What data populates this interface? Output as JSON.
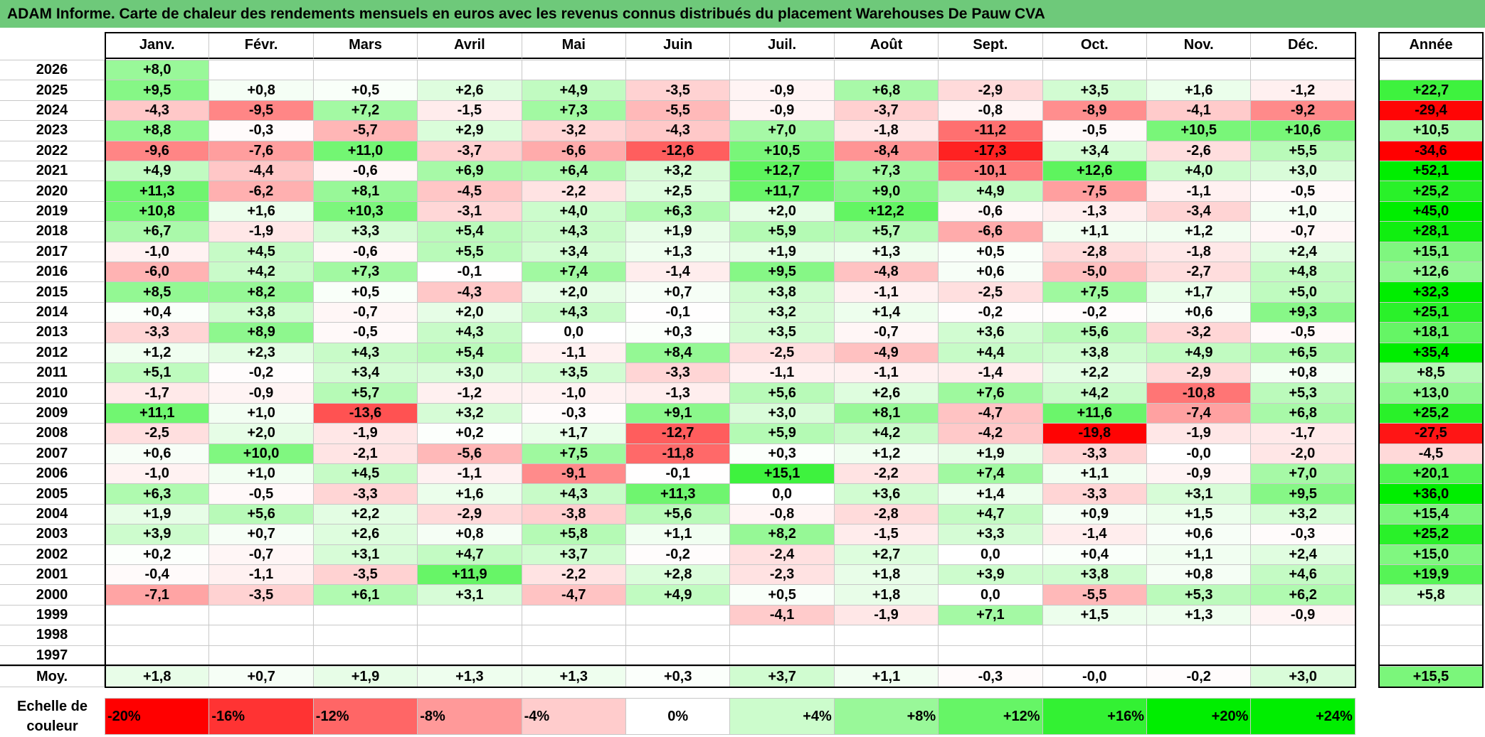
{
  "title": "ADAM Informe. Carte de chaleur des rendements mensuels en euros avec les revenus connus distribués du placement Warehouses De Pauw CVA",
  "chart_data": {
    "type": "heatmap",
    "months": [
      "Janv.",
      "Févr.",
      "Mars",
      "Avril",
      "Mai",
      "Juin",
      "Juil.",
      "Août",
      "Sept.",
      "Oct.",
      "Nov.",
      "Déc."
    ],
    "annual_header": "Année",
    "rows": [
      {
        "year": "2026",
        "months": [
          "+8,0",
          "",
          "",
          "",
          "",
          "",
          "",
          "",
          "",
          "",
          "",
          ""
        ],
        "annual": ""
      },
      {
        "year": "2025",
        "months": [
          "+9,5",
          "+0,8",
          "+0,5",
          "+2,6",
          "+4,9",
          "-3,5",
          "-0,9",
          "+6,8",
          "-2,9",
          "+3,5",
          "+1,6",
          "-1,2"
        ],
        "annual": "+22,7"
      },
      {
        "year": "2024",
        "months": [
          "-4,3",
          "-9,5",
          "+7,2",
          "-1,5",
          "+7,3",
          "-5,5",
          "-0,9",
          "-3,7",
          "-0,8",
          "-8,9",
          "-4,1",
          "-9,2"
        ],
        "annual": "-29,4"
      },
      {
        "year": "2023",
        "months": [
          "+8,8",
          "-0,3",
          "-5,7",
          "+2,9",
          "-3,2",
          "-4,3",
          "+7,0",
          "-1,8",
          "-11,2",
          "-0,5",
          "+10,5",
          "+10,6"
        ],
        "annual": "+10,5"
      },
      {
        "year": "2022",
        "months": [
          "-9,6",
          "-7,6",
          "+11,0",
          "-3,7",
          "-6,6",
          "-12,6",
          "+10,5",
          "-8,4",
          "-17,3",
          "+3,4",
          "-2,6",
          "+5,5"
        ],
        "annual": "-34,6"
      },
      {
        "year": "2021",
        "months": [
          "+4,9",
          "-4,4",
          "-0,6",
          "+6,9",
          "+6,4",
          "+3,2",
          "+12,7",
          "+7,3",
          "-10,1",
          "+12,6",
          "+4,0",
          "+3,0"
        ],
        "annual": "+52,1"
      },
      {
        "year": "2020",
        "months": [
          "+11,3",
          "-6,2",
          "+8,1",
          "-4,5",
          "-2,2",
          "+2,5",
          "+11,7",
          "+9,0",
          "+4,9",
          "-7,5",
          "-1,1",
          "-0,5"
        ],
        "annual": "+25,2"
      },
      {
        "year": "2019",
        "months": [
          "+10,8",
          "+1,6",
          "+10,3",
          "-3,1",
          "+4,0",
          "+6,3",
          "+2,0",
          "+12,2",
          "-0,6",
          "-1,3",
          "-3,4",
          "+1,0"
        ],
        "annual": "+45,0"
      },
      {
        "year": "2018",
        "months": [
          "+6,7",
          "-1,9",
          "+3,3",
          "+5,4",
          "+4,3",
          "+1,9",
          "+5,9",
          "+5,7",
          "-6,6",
          "+1,1",
          "+1,2",
          "-0,7"
        ],
        "annual": "+28,1"
      },
      {
        "year": "2017",
        "months": [
          "-1,0",
          "+4,5",
          "-0,6",
          "+5,5",
          "+3,4",
          "+1,3",
          "+1,9",
          "+1,3",
          "+0,5",
          "-2,8",
          "-1,8",
          "+2,4"
        ],
        "annual": "+15,1"
      },
      {
        "year": "2016",
        "months": [
          "-6,0",
          "+4,2",
          "+7,3",
          "-0,1",
          "+7,4",
          "-1,4",
          "+9,5",
          "-4,8",
          "+0,6",
          "-5,0",
          "-2,7",
          "+4,8"
        ],
        "annual": "+12,6"
      },
      {
        "year": "2015",
        "months": [
          "+8,5",
          "+8,2",
          "+0,5",
          "-4,3",
          "+2,0",
          "+0,7",
          "+3,8",
          "-1,1",
          "-2,5",
          "+7,5",
          "+1,7",
          "+5,0"
        ],
        "annual": "+32,3"
      },
      {
        "year": "2014",
        "months": [
          "+0,4",
          "+3,8",
          "-0,7",
          "+2,0",
          "+4,3",
          "-0,1",
          "+3,2",
          "+1,4",
          "-0,2",
          "-0,2",
          "+0,6",
          "+9,3"
        ],
        "annual": "+25,1"
      },
      {
        "year": "2013",
        "months": [
          "-3,3",
          "+8,9",
          "-0,5",
          "+4,3",
          "0,0",
          "+0,3",
          "+3,5",
          "-0,7",
          "+3,6",
          "+5,6",
          "-3,2",
          "-0,5"
        ],
        "annual": "+18,1"
      },
      {
        "year": "2012",
        "months": [
          "+1,2",
          "+2,3",
          "+4,3",
          "+5,4",
          "-1,1",
          "+8,4",
          "-2,5",
          "-4,9",
          "+4,4",
          "+3,8",
          "+4,9",
          "+6,5"
        ],
        "annual": "+35,4"
      },
      {
        "year": "2011",
        "months": [
          "+5,1",
          "-0,2",
          "+3,4",
          "+3,0",
          "+3,5",
          "-3,3",
          "-1,1",
          "-1,1",
          "-1,4",
          "+2,2",
          "-2,9",
          "+0,8"
        ],
        "annual": "+8,5"
      },
      {
        "year": "2010",
        "months": [
          "-1,7",
          "-0,9",
          "+5,7",
          "-1,2",
          "-1,0",
          "-1,3",
          "+5,6",
          "+2,6",
          "+7,6",
          "+4,2",
          "-10,8",
          "+5,3"
        ],
        "annual": "+13,0"
      },
      {
        "year": "2009",
        "months": [
          "+11,1",
          "+1,0",
          "-13,6",
          "+3,2",
          "-0,3",
          "+9,1",
          "+3,0",
          "+8,1",
          "-4,7",
          "+11,6",
          "-7,4",
          "+6,8"
        ],
        "annual": "+25,2"
      },
      {
        "year": "2008",
        "months": [
          "-2,5",
          "+2,0",
          "-1,9",
          "+0,2",
          "+1,7",
          "-12,7",
          "+5,9",
          "+4,2",
          "-4,2",
          "-19,8",
          "-1,9",
          "-1,7"
        ],
        "annual": "-27,5"
      },
      {
        "year": "2007",
        "months": [
          "+0,6",
          "+10,0",
          "-2,1",
          "-5,6",
          "+7,5",
          "-11,8",
          "+0,3",
          "+1,2",
          "+1,9",
          "-3,3",
          "-0,0",
          "-2,0"
        ],
        "annual": "-4,5"
      },
      {
        "year": "2006",
        "months": [
          "-1,0",
          "+1,0",
          "+4,5",
          "-1,1",
          "-9,1",
          "-0,1",
          "+15,1",
          "-2,2",
          "+7,4",
          "+1,1",
          "-0,9",
          "+7,0"
        ],
        "annual": "+20,1"
      },
      {
        "year": "2005",
        "months": [
          "+6,3",
          "-0,5",
          "-3,3",
          "+1,6",
          "+4,3",
          "+11,3",
          "0,0",
          "+3,6",
          "+1,4",
          "-3,3",
          "+3,1",
          "+9,5"
        ],
        "annual": "+36,0"
      },
      {
        "year": "2004",
        "months": [
          "+1,9",
          "+5,6",
          "+2,2",
          "-2,9",
          "-3,8",
          "+5,6",
          "-0,8",
          "-2,8",
          "+4,7",
          "+0,9",
          "+1,5",
          "+3,2"
        ],
        "annual": "+15,4"
      },
      {
        "year": "2003",
        "months": [
          "+3,9",
          "+0,7",
          "+2,6",
          "+0,8",
          "+5,8",
          "+1,1",
          "+8,2",
          "-1,5",
          "+3,3",
          "-1,4",
          "+0,6",
          "-0,3"
        ],
        "annual": "+25,2"
      },
      {
        "year": "2002",
        "months": [
          "+0,2",
          "-0,7",
          "+3,1",
          "+4,7",
          "+3,7",
          "-0,2",
          "-2,4",
          "+2,7",
          "0,0",
          "+0,4",
          "+1,1",
          "+2,4"
        ],
        "annual": "+15,0"
      },
      {
        "year": "2001",
        "months": [
          "-0,4",
          "-1,1",
          "-3,5",
          "+11,9",
          "-2,2",
          "+2,8",
          "-2,3",
          "+1,8",
          "+3,9",
          "+3,8",
          "+0,8",
          "+4,6"
        ],
        "annual": "+19,9"
      },
      {
        "year": "2000",
        "months": [
          "-7,1",
          "-3,5",
          "+6,1",
          "+3,1",
          "-4,7",
          "+4,9",
          "+0,5",
          "+1,8",
          "0,0",
          "-5,5",
          "+5,3",
          "+6,2"
        ],
        "annual": "+5,8"
      },
      {
        "year": "1999",
        "months": [
          "",
          "",
          "",
          "",
          "",
          "",
          "-4,1",
          "-1,9",
          "+7,1",
          "+1,5",
          "+1,3",
          "-0,9"
        ],
        "annual": ""
      },
      {
        "year": "1998",
        "months": [
          "",
          "",
          "",
          "",
          "",
          "",
          "",
          "",
          "",
          "",
          "",
          ""
        ],
        "annual": ""
      },
      {
        "year": "1997",
        "months": [
          "",
          "",
          "",
          "",
          "",
          "",
          "",
          "",
          "",
          "",
          "",
          ""
        ],
        "annual": ""
      }
    ],
    "average": {
      "label": "Moy.",
      "months": [
        "+1,8",
        "+0,7",
        "+1,9",
        "+1,3",
        "+1,3",
        "+0,3",
        "+3,7",
        "+1,1",
        "-0,3",
        "-0,0",
        "-0,2",
        "+3,0"
      ],
      "annual": "+15,5"
    },
    "color_scale": {
      "label_line1": "Echelle de",
      "label_line2": "couleur",
      "stops": [
        "-20%",
        "-16%",
        "-12%",
        "-8%",
        "-4%",
        "0%",
        "+4%",
        "+8%",
        "+12%",
        "+16%",
        "+20%",
        "+24%"
      ],
      "stop_values": [
        -20,
        -16,
        -12,
        -8,
        -4,
        0,
        4,
        8,
        12,
        16,
        20,
        24
      ],
      "negative_color": "#ff0000",
      "neutral_color": "#ffffff",
      "positive_color": "#00ee00",
      "monthly_saturation": 20,
      "annual_saturation": 30
    }
  }
}
